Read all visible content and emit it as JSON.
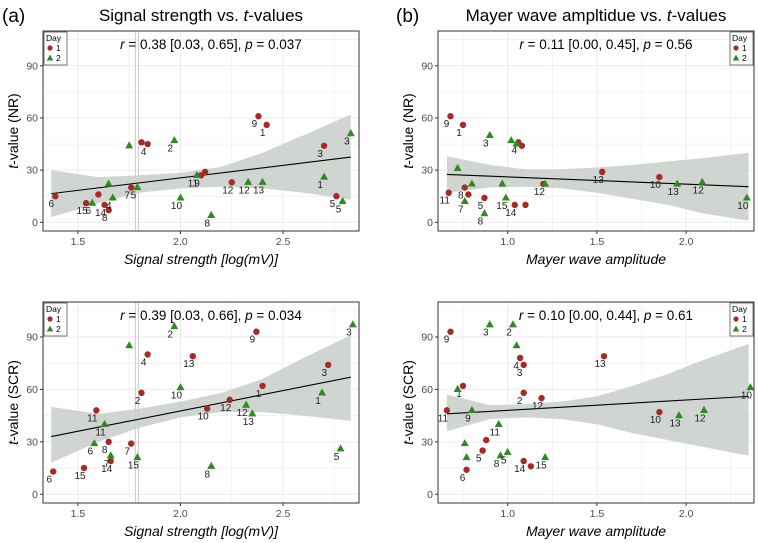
{
  "panel_letters": [
    "(a)",
    "(b)"
  ],
  "colors": {
    "day1": "#a52a2a",
    "day2": "#2e8b22",
    "ci_band": "#c8ceca",
    "grid": "#ebebeb",
    "fit_line": "#000000",
    "vline": "#c8c8c8"
  },
  "chart_data": [
    {
      "type": "scatter",
      "title": "Signal strength vs. t-values",
      "title_parts": [
        "Signal strength vs. ",
        "t",
        "-values"
      ],
      "stat_text": "r = 0.38 [0.03, 0.65], p = 0.037",
      "xlabel": "Signal strength [log(mV)]",
      "ylabel": "t-value (NR)",
      "xlim": [
        1.33,
        2.87
      ],
      "ylim": [
        -5,
        110
      ],
      "xticks": [
        1.5,
        2.0,
        2.5
      ],
      "xtick_labels": [
        "1.5",
        "2.0",
        "2.5"
      ],
      "yticks": [
        0,
        30,
        60,
        90
      ],
      "ytick_labels": [
        "0",
        "30",
        "60",
        "90"
      ],
      "vline_x": 1.78,
      "legend": {
        "title": "Day",
        "entries": [
          "1",
          "2"
        ],
        "position": "top-left"
      },
      "fit": {
        "x": [
          1.37,
          2.83
        ],
        "y": [
          16.5,
          37.5
        ]
      },
      "ci": {
        "x": [
          1.37,
          1.6,
          1.8,
          2.0,
          2.2,
          2.4,
          2.6,
          2.83
        ],
        "lower": [
          3,
          11,
          17,
          19.5,
          20.5,
          19.5,
          17,
          13
        ],
        "upper": [
          30,
          26,
          27,
          28.5,
          32,
          40,
          50,
          62
        ]
      },
      "series": [
        {
          "name": "1",
          "points": [
            {
              "x": 1.39,
              "y": 15,
              "label": "6"
            },
            {
              "x": 1.54,
              "y": 11,
              "label": "15"
            },
            {
              "x": 1.6,
              "y": 16,
              "label": ""
            },
            {
              "x": 1.63,
              "y": 10,
              "label": "14"
            },
            {
              "x": 1.65,
              "y": 7,
              "label": "8"
            },
            {
              "x": 1.76,
              "y": 20,
              "label": "7"
            },
            {
              "x": 1.81,
              "y": 46,
              "label": ""
            },
            {
              "x": 1.84,
              "y": 45,
              "label": "4"
            },
            {
              "x": 2.1,
              "y": 27,
              "label": "9"
            },
            {
              "x": 2.12,
              "y": 29,
              "label": ""
            },
            {
              "x": 2.25,
              "y": 23,
              "label": "12"
            },
            {
              "x": 2.38,
              "y": 61,
              "label": "9"
            },
            {
              "x": 2.42,
              "y": 56,
              "label": "1"
            },
            {
              "x": 2.7,
              "y": 44,
              "label": "3"
            },
            {
              "x": 2.76,
              "y": 15,
              "label": "5"
            }
          ]
        },
        {
          "name": "2",
          "points": [
            {
              "x": 1.57,
              "y": 11,
              "label": "6"
            },
            {
              "x": 1.65,
              "y": 22,
              "label": ""
            },
            {
              "x": 1.67,
              "y": 14,
              "label": "4"
            },
            {
              "x": 1.79,
              "y": 20,
              "label": "5"
            },
            {
              "x": 1.75,
              "y": 44,
              "label": ""
            },
            {
              "x": 1.97,
              "y": 47,
              "label": "2"
            },
            {
              "x": 2.0,
              "y": 14,
              "label": "10"
            },
            {
              "x": 2.08,
              "y": 27,
              "label": "11"
            },
            {
              "x": 2.15,
              "y": 4,
              "label": "8"
            },
            {
              "x": 2.33,
              "y": 23,
              "label": "12"
            },
            {
              "x": 2.4,
              "y": 23,
              "label": "13"
            },
            {
              "x": 2.7,
              "y": 26,
              "label": "1"
            },
            {
              "x": 2.79,
              "y": 12,
              "label": "5"
            },
            {
              "x": 2.83,
              "y": 51,
              "label": "3"
            }
          ]
        }
      ]
    },
    {
      "type": "scatter",
      "title": "Mayer wave ampltidue vs. t-values",
      "title_parts": [
        "Mayer wave ampltidue vs. ",
        "t",
        "-values"
      ],
      "stat_text": "r = 0.11 [0.00, 0.45], p = 0.56",
      "xlabel": "Mayer wave amplitude",
      "ylabel": "t-value (NR)",
      "xlim": [
        0.61,
        2.38
      ],
      "ylim": [
        -5,
        110
      ],
      "xticks": [
        1.0,
        1.5,
        2.0
      ],
      "xtick_labels": [
        "1.0",
        "1.5",
        "2.0"
      ],
      "yticks": [
        0,
        30,
        60,
        90
      ],
      "ytick_labels": [
        "0",
        "30",
        "60",
        "90"
      ],
      "legend": {
        "title": "Day",
        "entries": [
          "1",
          "2"
        ],
        "position": "top-right"
      },
      "fit": {
        "x": [
          0.66,
          2.35
        ],
        "y": [
          27.5,
          20.5
        ]
      },
      "ci": {
        "x": [
          0.66,
          0.9,
          1.1,
          1.3,
          1.5,
          1.7,
          1.9,
          2.1,
          2.35
        ],
        "lower": [
          17,
          20,
          20.5,
          19.5,
          17,
          13.5,
          10,
          5,
          1
        ],
        "upper": [
          38,
          33,
          30.5,
          30.5,
          31.5,
          33,
          35,
          37,
          40
        ]
      },
      "series": [
        {
          "name": "1",
          "points": [
            {
              "x": 0.68,
              "y": 61,
              "label": "9"
            },
            {
              "x": 0.67,
              "y": 17,
              "label": "11"
            },
            {
              "x": 0.75,
              "y": 56,
              "label": "1"
            },
            {
              "x": 0.76,
              "y": 20,
              "label": "8"
            },
            {
              "x": 0.78,
              "y": 16,
              "label": ""
            },
            {
              "x": 0.87,
              "y": 14,
              "label": "5"
            },
            {
              "x": 1.04,
              "y": 10,
              "label": "14"
            },
            {
              "x": 1.06,
              "y": 46,
              "label": "4"
            },
            {
              "x": 1.08,
              "y": 44,
              "label": ""
            },
            {
              "x": 1.1,
              "y": 10,
              "label": ""
            },
            {
              "x": 1.2,
              "y": 22,
              "label": "12"
            },
            {
              "x": 1.53,
              "y": 29,
              "label": "13"
            },
            {
              "x": 1.85,
              "y": 26,
              "label": "10"
            }
          ]
        },
        {
          "name": "2",
          "points": [
            {
              "x": 0.72,
              "y": 31,
              "label": ""
            },
            {
              "x": 0.76,
              "y": 12,
              "label": "7"
            },
            {
              "x": 0.8,
              "y": 22,
              "label": ""
            },
            {
              "x": 0.87,
              "y": 5,
              "label": "8"
            },
            {
              "x": 0.9,
              "y": 50,
              "label": "3"
            },
            {
              "x": 0.97,
              "y": 22,
              "label": ""
            },
            {
              "x": 0.99,
              "y": 14,
              "label": "15"
            },
            {
              "x": 1.02,
              "y": 47,
              "label": ""
            },
            {
              "x": 1.05,
              "y": 45,
              "label": ""
            },
            {
              "x": 1.21,
              "y": 22,
              "label": ""
            },
            {
              "x": 1.95,
              "y": 22,
              "label": "13"
            },
            {
              "x": 2.09,
              "y": 23,
              "label": "12"
            },
            {
              "x": 2.34,
              "y": 14,
              "label": "10"
            }
          ]
        }
      ]
    },
    {
      "type": "scatter",
      "title": "",
      "stat_text": "r = 0.39  [0.03, 0.66], p = 0.034",
      "xlabel": "Signal strength [log(mV)]",
      "ylabel": "t-value (SCR)",
      "xlim": [
        1.33,
        2.87
      ],
      "ylim": [
        -5,
        110
      ],
      "xticks": [
        1.5,
        2.0,
        2.5
      ],
      "xtick_labels": [
        "1.5",
        "2.0",
        "2.5"
      ],
      "yticks": [
        0,
        30,
        60,
        90
      ],
      "ytick_labels": [
        "0",
        "30",
        "60",
        "90"
      ],
      "vline_x": 1.78,
      "legend": {
        "title": "Day",
        "entries": [
          "1",
          "2"
        ],
        "position": "top-left"
      },
      "fit": {
        "x": [
          1.37,
          2.83
        ],
        "y": [
          33,
          67
        ]
      },
      "ci": {
        "x": [
          1.37,
          1.6,
          1.8,
          2.0,
          2.2,
          2.4,
          2.6,
          2.83
        ],
        "lower": [
          18,
          30,
          38,
          44,
          47,
          47,
          45,
          42
        ],
        "upper": [
          50,
          46,
          49,
          53,
          58,
          66,
          78,
          91
        ]
      },
      "series": [
        {
          "name": "1",
          "points": [
            {
              "x": 1.38,
              "y": 13,
              "label": "6"
            },
            {
              "x": 1.53,
              "y": 15,
              "label": "15"
            },
            {
              "x": 1.59,
              "y": 48,
              "label": "11"
            },
            {
              "x": 1.65,
              "y": 30,
              "label": "8"
            },
            {
              "x": 1.66,
              "y": 19,
              "label": "14"
            },
            {
              "x": 1.76,
              "y": 29,
              "label": "7"
            },
            {
              "x": 1.81,
              "y": 58,
              "label": "2"
            },
            {
              "x": 1.84,
              "y": 80,
              "label": "4"
            },
            {
              "x": 2.06,
              "y": 79,
              "label": "13"
            },
            {
              "x": 2.13,
              "y": 49,
              "label": "10"
            },
            {
              "x": 2.24,
              "y": 54,
              "label": "12"
            },
            {
              "x": 2.37,
              "y": 93,
              "label": "9"
            },
            {
              "x": 2.4,
              "y": 62,
              "label": "1"
            },
            {
              "x": 2.72,
              "y": 74,
              "label": "3"
            }
          ]
        },
        {
          "name": "2",
          "points": [
            {
              "x": 1.58,
              "y": 29,
              "label": "6"
            },
            {
              "x": 1.63,
              "y": 40,
              "label": "11"
            },
            {
              "x": 1.66,
              "y": 22,
              "label": "7"
            },
            {
              "x": 1.75,
              "y": 85,
              "label": ""
            },
            {
              "x": 1.79,
              "y": 21,
              "label": "15"
            },
            {
              "x": 1.97,
              "y": 96,
              "label": "2"
            },
            {
              "x": 2.0,
              "y": 61,
              "label": "10"
            },
            {
              "x": 2.15,
              "y": 16,
              "label": "8"
            },
            {
              "x": 2.32,
              "y": 51,
              "label": "12"
            },
            {
              "x": 2.35,
              "y": 46,
              "label": "13"
            },
            {
              "x": 2.69,
              "y": 58,
              "label": "1"
            },
            {
              "x": 2.78,
              "y": 26,
              "label": "5"
            },
            {
              "x": 2.84,
              "y": 97,
              "label": "3"
            }
          ]
        }
      ]
    },
    {
      "type": "scatter",
      "title": "",
      "stat_text": "r = 0.10 [0.00, 0.44], p = 0.61",
      "xlabel": "Mayer wave amplitude",
      "ylabel": "t-value (SCR)",
      "xlim": [
        0.61,
        2.38
      ],
      "ylim": [
        -5,
        110
      ],
      "xticks": [
        1.0,
        1.5,
        2.0
      ],
      "xtick_labels": [
        "1.0",
        "1.5",
        "2.0"
      ],
      "yticks": [
        0,
        30,
        60,
        90
      ],
      "ytick_labels": [
        "0",
        "30",
        "60",
        "90"
      ],
      "legend": {
        "title": "Day",
        "entries": [
          "1",
          "2"
        ],
        "position": "top-right"
      },
      "fit": {
        "x": [
          0.66,
          2.35
        ],
        "y": [
          46,
          56
        ]
      },
      "ci": {
        "x": [
          0.66,
          0.9,
          1.1,
          1.3,
          1.5,
          1.7,
          1.9,
          2.1,
          2.35
        ],
        "lower": [
          36,
          43,
          44,
          43,
          40,
          35,
          31,
          27,
          22
        ],
        "upper": [
          57,
          51,
          51.5,
          53,
          56,
          62,
          69,
          77,
          86
        ]
      },
      "series": [
        {
          "name": "1",
          "points": [
            {
              "x": 0.68,
              "y": 93,
              "label": "9"
            },
            {
              "x": 0.66,
              "y": 48,
              "label": "11"
            },
            {
              "x": 0.75,
              "y": 62,
              "label": "1"
            },
            {
              "x": 0.77,
              "y": 14,
              "label": "6"
            },
            {
              "x": 0.86,
              "y": 25,
              "label": "5"
            },
            {
              "x": 0.88,
              "y": 31,
              "label": ""
            },
            {
              "x": 1.07,
              "y": 78,
              "label": "4"
            },
            {
              "x": 1.09,
              "y": 74,
              "label": "3"
            },
            {
              "x": 1.09,
              "y": 58,
              "label": "2"
            },
            {
              "x": 1.09,
              "y": 19,
              "label": "14"
            },
            {
              "x": 1.13,
              "y": 16,
              "label": ""
            },
            {
              "x": 1.19,
              "y": 55,
              "label": "12"
            },
            {
              "x": 1.54,
              "y": 79,
              "label": "13"
            },
            {
              "x": 1.85,
              "y": 47,
              "label": "10"
            }
          ]
        },
        {
          "name": "2",
          "points": [
            {
              "x": 0.72,
              "y": 60,
              "label": ""
            },
            {
              "x": 0.76,
              "y": 29,
              "label": ""
            },
            {
              "x": 0.77,
              "y": 21,
              "label": ""
            },
            {
              "x": 0.8,
              "y": 48,
              "label": "9"
            },
            {
              "x": 0.9,
              "y": 97,
              "label": "3"
            },
            {
              "x": 0.95,
              "y": 40,
              "label": "11"
            },
            {
              "x": 0.96,
              "y": 22,
              "label": "8"
            },
            {
              "x": 1.0,
              "y": 24,
              "label": "5"
            },
            {
              "x": 1.03,
              "y": 97,
              "label": "2"
            },
            {
              "x": 1.05,
              "y": 85,
              "label": ""
            },
            {
              "x": 1.21,
              "y": 21,
              "label": "15"
            },
            {
              "x": 1.96,
              "y": 45,
              "label": "13"
            },
            {
              "x": 2.1,
              "y": 48,
              "label": "12"
            },
            {
              "x": 2.36,
              "y": 61,
              "label": "10"
            }
          ]
        }
      ]
    }
  ]
}
